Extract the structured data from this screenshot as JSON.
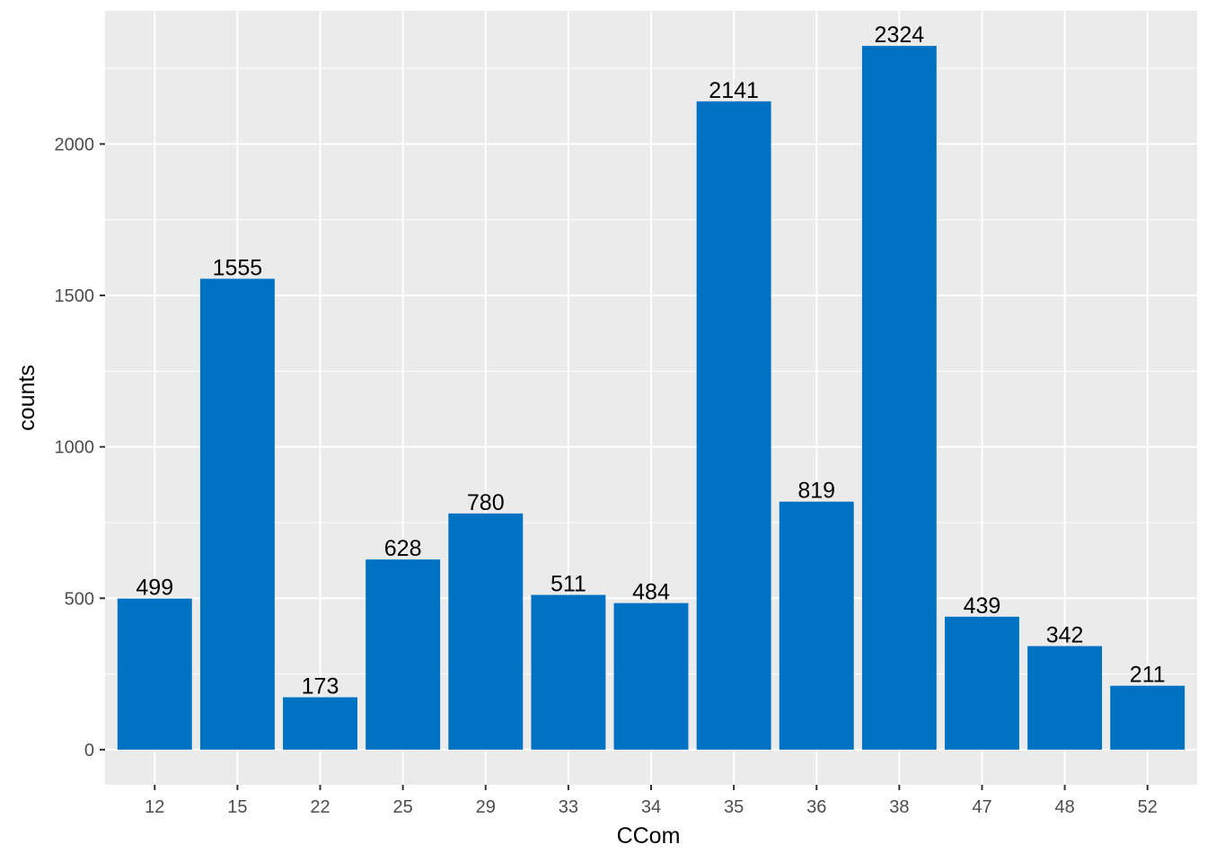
{
  "chart_data": {
    "type": "bar",
    "categories": [
      "12",
      "15",
      "22",
      "25",
      "29",
      "33",
      "34",
      "35",
      "36",
      "38",
      "47",
      "48",
      "52"
    ],
    "values": [
      499,
      1555,
      173,
      628,
      780,
      511,
      484,
      2141,
      819,
      2324,
      439,
      342,
      211
    ],
    "xlabel": "CCom",
    "ylabel": "counts",
    "yticks": [
      0,
      500,
      1000,
      1500,
      2000
    ],
    "ylim": [
      -116,
      2440
    ],
    "grid": true,
    "legend": "none",
    "colors": {
      "bar": "#0072C3",
      "panel": "#EBEBEB",
      "grid": "#FFFFFF"
    }
  }
}
